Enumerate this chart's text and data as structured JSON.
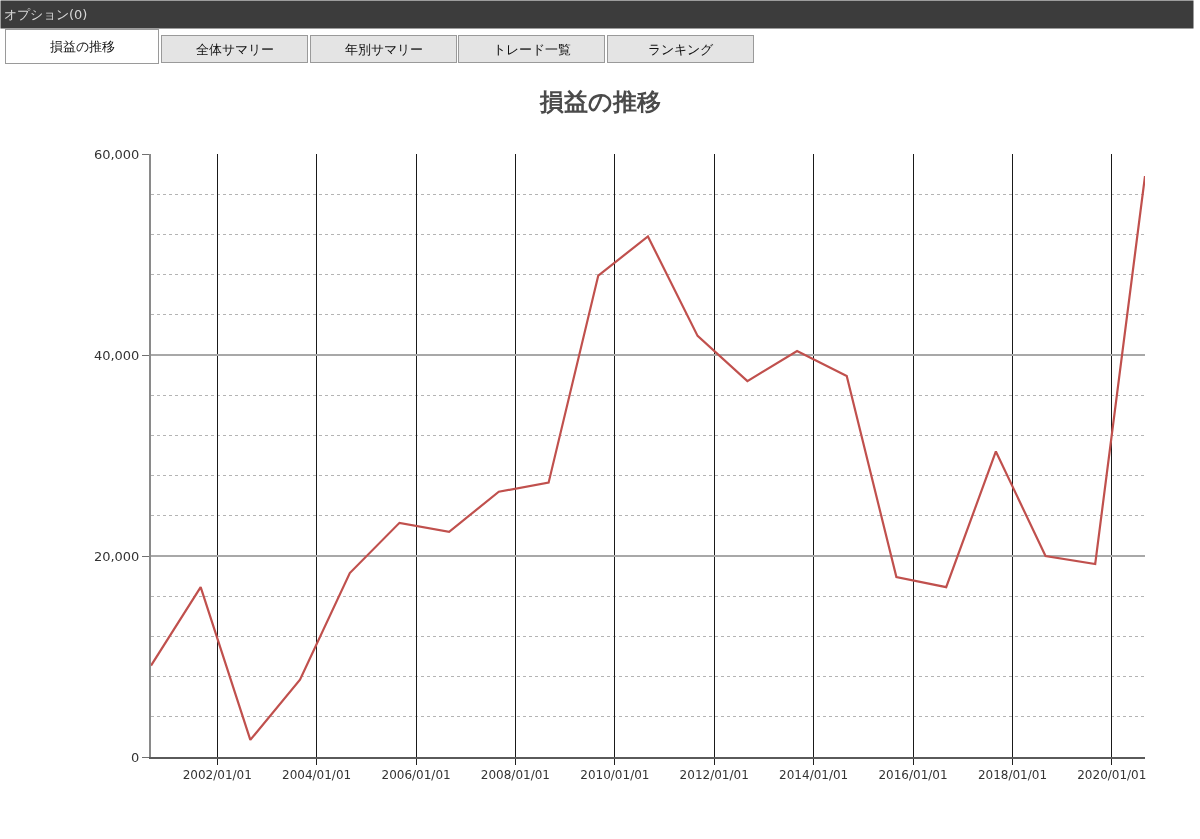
{
  "chart_data": {
    "type": "line",
    "title": "損益の推移",
    "annotations": [
      "オプション(0)",
      "損益の推移",
      "全体サマリー",
      "年別サマリー",
      "トレード一覧",
      "ランキング"
    ],
    "x": [
      "2000-09",
      "2001-09",
      "2002-09",
      "2003-09",
      "2004-09",
      "2005-09",
      "2006-09",
      "2007-09",
      "2008-09",
      "2009-09",
      "2010-09",
      "2011-09",
      "2012-09",
      "2013-09",
      "2014-09",
      "2015-09",
      "2016-09",
      "2017-09",
      "2018-09",
      "2019-09",
      "2020-09"
    ],
    "series": [
      {
        "color": "#c0504d",
        "values": [
          9100,
          16900,
          1700,
          7700,
          18300,
          23300,
          22400,
          26400,
          27300,
          47900,
          51800,
          41900,
          37400,
          40400,
          37900,
          17900,
          16900,
          30400,
          20000,
          19200,
          57800
        ]
      }
    ],
    "xlim": [
      "2000-09",
      "2020-09"
    ],
    "xticks": [
      {
        "value": "2002-01-01",
        "label": "2002/01/01"
      },
      {
        "value": "2004-01-01",
        "label": "2004/01/01"
      },
      {
        "value": "2006-01-01",
        "label": "2006/01/01"
      },
      {
        "value": "2008-01-01",
        "label": "2008/01/01"
      },
      {
        "value": "2010-01-01",
        "label": "2010/01/01"
      },
      {
        "value": "2012-01-01",
        "label": "2012/01/01"
      },
      {
        "value": "2014-01-01",
        "label": "2014/01/01"
      },
      {
        "value": "2016-01-01",
        "label": "2016/01/01"
      },
      {
        "value": "2018-01-01",
        "label": "2018/01/01"
      },
      {
        "value": "2020-01-01",
        "label": "2020/01/01"
      }
    ],
    "ylim": [
      0,
      60000
    ],
    "yticks": [
      0,
      {
        "value": 4000,
        "label": null
      },
      {
        "value": 8000,
        "label": null
      },
      {
        "value": 12000,
        "label": null
      },
      {
        "value": 16000,
        "label": null
      },
      {
        "value": 20000,
        "label": "20,000"
      },
      {
        "value": 24000,
        "label": null
      },
      {
        "value": 28000,
        "label": null
      },
      {
        "value": 32000,
        "label": null
      },
      {
        "value": 36000,
        "label": null
      },
      {
        "value": 40000,
        "label": "40,000"
      },
      {
        "value": 44000,
        "label": null
      },
      {
        "value": 48000,
        "label": null
      },
      {
        "value": 52000,
        "label": null
      },
      {
        "value": 56000,
        "label": null
      },
      {
        "value": 60000,
        "label": "60,000"
      }
    ],
    "grid": true
  }
}
